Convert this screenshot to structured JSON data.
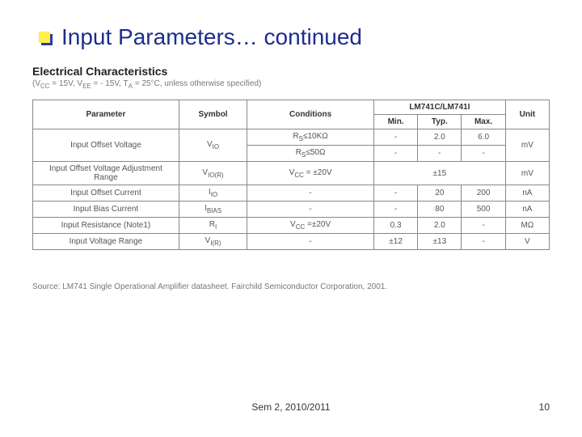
{
  "title": "Input Parameters… continued",
  "section_heading": "Electrical Characteristics",
  "section_note": "(VCC = 15V, VEE = - 15V, TA = 25°C, unless otherwise specified)",
  "device_header": "LM741C/LM741I",
  "columns": {
    "parameter": "Parameter",
    "symbol": "Symbol",
    "conditions": "Conditions",
    "min": "Min.",
    "typ": "Typ.",
    "max": "Max.",
    "unit": "Unit"
  },
  "rows": [
    {
      "parameter": "Input Offset Voltage",
      "symbol": "VIO",
      "conditions": "RS≤10KΩ",
      "min": "-",
      "typ": "2.0",
      "max": "6.0",
      "unit": "mV",
      "row2": {
        "conditions": "RS≤50Ω",
        "min": "-",
        "typ": "-",
        "max": "-"
      }
    },
    {
      "parameter": "Input Offset Voltage Adjustment Range",
      "symbol": "VIO(R)",
      "conditions": "VCC = ±20V",
      "min": "",
      "typ": "±15",
      "max": "",
      "unit": "mV"
    },
    {
      "parameter": "Input Offset Current",
      "symbol": "IIO",
      "conditions": "-",
      "min": "-",
      "typ": "20",
      "max": "200",
      "unit": "nA"
    },
    {
      "parameter": "Input Bias Current",
      "symbol": "IBIAS",
      "conditions": "-",
      "min": "-",
      "typ": "80",
      "max": "500",
      "unit": "nA"
    },
    {
      "parameter": "Input Resistance (Note1)",
      "symbol": "RI",
      "conditions": "VCC =±20V",
      "min": "0.3",
      "typ": "2.0",
      "max": "-",
      "unit": "MΩ"
    },
    {
      "parameter": "Input Voltage Range",
      "symbol": "VI(R)",
      "conditions": "-",
      "min": "±12",
      "typ": "±13",
      "max": "-",
      "unit": "V"
    }
  ],
  "source": "Source: LM741 Single Operational Amplifier datasheet. Fairchild Semiconductor Corporation, 2001.",
  "footer": "Sem 2, 2010/2011",
  "pagenum": "10",
  "colors": {
    "title_color": "#1d2d8d",
    "bullet_fill": "#ffef4a",
    "bullet_shadow": "#2a3aa8",
    "border": "#888888",
    "text_muted": "#777777"
  },
  "fonts": {
    "title_size_pt": 28,
    "body_size_pt": 10,
    "table_size_pt": 10,
    "footer_size_pt": 12
  }
}
